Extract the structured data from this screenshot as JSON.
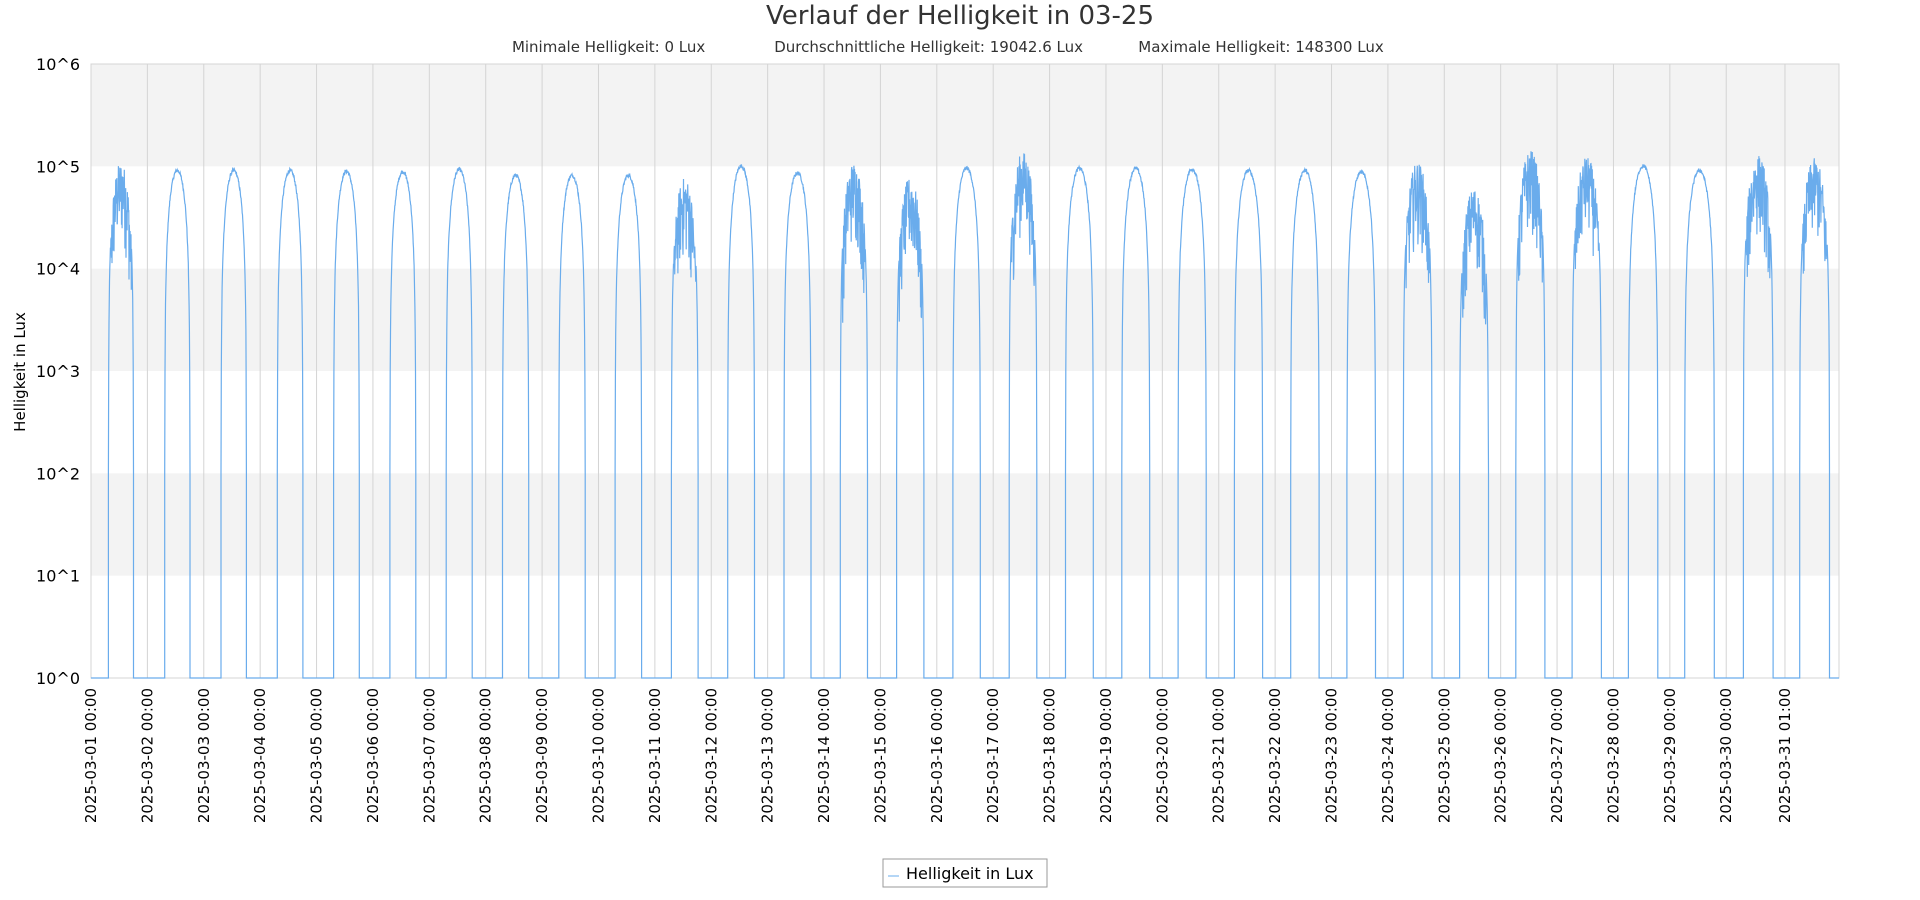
{
  "chart_data": {
    "type": "line",
    "title": "Verlauf der Helligkeit in 03-25",
    "subtitle": {
      "min_label": "Minimale Helligkeit: 0 Lux",
      "avg_label": "Durchschnittliche Helligkeit: 19042.6 Lux",
      "max_label": "Maximale Helligkeit: 148300 Lux"
    },
    "ylabel": "Helligkeit in Lux",
    "xlabel": "",
    "y_scale": "log10",
    "ylim": [
      1,
      1000000
    ],
    "y_ticks": [
      "10^0",
      "10^1",
      "10^2",
      "10^3",
      "10^4",
      "10^5",
      "10^6"
    ],
    "x_ticks": [
      "2025-03-01 00:00",
      "2025-03-02 00:00",
      "2025-03-03 00:00",
      "2025-03-04 00:00",
      "2025-03-05 00:00",
      "2025-03-06 00:00",
      "2025-03-07 00:00",
      "2025-03-08 00:00",
      "2025-03-09 00:00",
      "2025-03-10 00:00",
      "2025-03-11 00:00",
      "2025-03-12 00:00",
      "2025-03-13 00:00",
      "2025-03-14 00:00",
      "2025-03-15 00:00",
      "2025-03-16 00:00",
      "2025-03-17 00:00",
      "2025-03-18 00:00",
      "2025-03-19 00:00",
      "2025-03-20 00:00",
      "2025-03-21 00:00",
      "2025-03-22 00:00",
      "2025-03-23 00:00",
      "2025-03-24 00:00",
      "2025-03-25 00:00",
      "2025-03-26 00:00",
      "2025-03-27 00:00",
      "2025-03-28 00:00",
      "2025-03-29 00:00",
      "2025-03-30 00:00",
      "2025-03-31 01:00"
    ],
    "xlim": [
      "2025-03-01 00:00",
      "2025-04-01 00:00"
    ],
    "grid": true,
    "legend": "bottom-center",
    "series": [
      {
        "name": "Helligkeit in Lux",
        "color": "#6aacec",
        "daily_peak_lux": [
          110000,
          95000,
          95000,
          95000,
          93000,
          92000,
          97000,
          85000,
          85000,
          85000,
          78000,
          105000,
          90000,
          110000,
          78000,
          100000,
          140000,
          100000,
          100000,
          98000,
          95000,
          95000,
          92000,
          110000,
          62000,
          145000,
          125000,
          105000,
          95000,
          130000,
          120000
        ],
        "sunrise": [
          "2025-03-01 07:25",
          "2025-03-02 07:22",
          "2025-03-03 07:20",
          "2025-03-04 07:18",
          "2025-03-05 07:16",
          "2025-03-06 07:14",
          "2025-03-07 07:11",
          "2025-03-08 07:09",
          "2025-03-09 07:07",
          "2025-03-10 07:05",
          "2025-03-11 07:02",
          "2025-03-12 07:00",
          "2025-03-13 06:58",
          "2025-03-14 06:55",
          "2025-03-15 06:53",
          "2025-03-16 06:51",
          "2025-03-17 06:48",
          "2025-03-18 06:46",
          "2025-03-19 06:44",
          "2025-03-20 06:41",
          "2025-03-21 06:39",
          "2025-03-22 06:37",
          "2025-03-23 06:34",
          "2025-03-24 06:32",
          "2025-03-25 06:30",
          "2025-03-26 06:27",
          "2025-03-27 06:25",
          "2025-03-28 06:23",
          "2025-03-29 06:20",
          "2025-03-30 07:18",
          "2025-03-31 07:16"
        ],
        "sunset": [
          "2025-03-01 18:05",
          "2025-03-02 18:07",
          "2025-03-03 18:09",
          "2025-03-04 18:11",
          "2025-03-05 18:12",
          "2025-03-06 18:14",
          "2025-03-07 18:16",
          "2025-03-08 18:18",
          "2025-03-09 18:20",
          "2025-03-10 18:21",
          "2025-03-11 18:23",
          "2025-03-12 18:25",
          "2025-03-13 18:27",
          "2025-03-14 18:29",
          "2025-03-15 18:30",
          "2025-03-16 18:32",
          "2025-03-17 18:34",
          "2025-03-18 18:36",
          "2025-03-19 18:37",
          "2025-03-20 18:39",
          "2025-03-21 18:41",
          "2025-03-22 18:43",
          "2025-03-23 18:44",
          "2025-03-24 18:46",
          "2025-03-25 18:48",
          "2025-03-26 18:50",
          "2025-03-27 18:51",
          "2025-03-28 18:53",
          "2025-03-29 18:55",
          "2025-03-30 19:57",
          "2025-03-31 19:58"
        ],
        "night_value_lux": 1
      }
    ]
  },
  "colors": {
    "band": "#f3f3f3",
    "grid": "#d4d4d4",
    "series": "#6aacec",
    "text": "#333333"
  }
}
